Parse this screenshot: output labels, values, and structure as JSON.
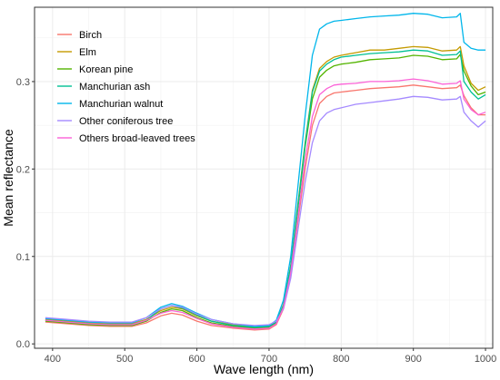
{
  "chart_data": {
    "type": "line",
    "title": "",
    "xlabel": "Wave length (nm)",
    "ylabel": "Mean reflectance",
    "xlim": [
      375,
      1010
    ],
    "ylim": [
      -0.005,
      0.385
    ],
    "x_ticks": [
      400,
      500,
      600,
      700,
      800,
      900,
      1000
    ],
    "x_tick_labels": [
      "400",
      "500",
      "600",
      "700",
      "800",
      "900",
      "1000"
    ],
    "y_ticks": [
      0.0,
      0.1,
      0.2,
      0.3
    ],
    "y_tick_labels": [
      "0.0",
      "0.1",
      "0.2",
      "0.3"
    ],
    "grid": true,
    "legend_position": "top-left",
    "x": [
      390,
      420,
      450,
      480,
      510,
      530,
      550,
      565,
      580,
      600,
      620,
      650,
      680,
      700,
      710,
      720,
      730,
      740,
      750,
      760,
      770,
      780,
      790,
      800,
      820,
      840,
      860,
      880,
      900,
      920,
      940,
      960,
      965,
      970,
      980,
      990,
      1000
    ],
    "series": [
      {
        "name": "Birch",
        "color": "#F8766D",
        "values": [
          0.025,
          0.023,
          0.021,
          0.02,
          0.02,
          0.024,
          0.032,
          0.035,
          0.033,
          0.026,
          0.021,
          0.018,
          0.016,
          0.017,
          0.022,
          0.04,
          0.08,
          0.14,
          0.2,
          0.25,
          0.275,
          0.283,
          0.287,
          0.288,
          0.29,
          0.292,
          0.293,
          0.294,
          0.296,
          0.294,
          0.292,
          0.293,
          0.296,
          0.284,
          0.27,
          0.262,
          0.262
        ]
      },
      {
        "name": "Elm",
        "color": "#C49A00",
        "values": [
          0.028,
          0.026,
          0.024,
          0.023,
          0.023,
          0.028,
          0.038,
          0.042,
          0.04,
          0.032,
          0.026,
          0.022,
          0.019,
          0.02,
          0.025,
          0.045,
          0.09,
          0.16,
          0.23,
          0.29,
          0.315,
          0.323,
          0.328,
          0.33,
          0.333,
          0.336,
          0.336,
          0.338,
          0.34,
          0.339,
          0.335,
          0.336,
          0.34,
          0.318,
          0.298,
          0.29,
          0.294
        ]
      },
      {
        "name": "Korean pine",
        "color": "#53B400",
        "values": [
          0.026,
          0.024,
          0.022,
          0.021,
          0.021,
          0.026,
          0.036,
          0.04,
          0.038,
          0.03,
          0.024,
          0.02,
          0.018,
          0.019,
          0.024,
          0.043,
          0.088,
          0.155,
          0.225,
          0.28,
          0.305,
          0.313,
          0.318,
          0.32,
          0.322,
          0.325,
          0.326,
          0.327,
          0.33,
          0.329,
          0.325,
          0.326,
          0.331,
          0.312,
          0.295,
          0.285,
          0.288
        ]
      },
      {
        "name": "Manchurian ash",
        "color": "#00C094",
        "values": [
          0.027,
          0.025,
          0.023,
          0.022,
          0.022,
          0.027,
          0.04,
          0.044,
          0.041,
          0.033,
          0.026,
          0.021,
          0.019,
          0.02,
          0.025,
          0.044,
          0.089,
          0.158,
          0.228,
          0.288,
          0.312,
          0.32,
          0.325,
          0.328,
          0.33,
          0.332,
          0.333,
          0.334,
          0.336,
          0.335,
          0.33,
          0.331,
          0.335,
          0.3,
          0.288,
          0.28,
          0.285
        ]
      },
      {
        "name": "Manchurian walnut",
        "color": "#00B6EB",
        "values": [
          0.029,
          0.027,
          0.025,
          0.024,
          0.024,
          0.03,
          0.042,
          0.046,
          0.043,
          0.035,
          0.028,
          0.023,
          0.02,
          0.021,
          0.027,
          0.05,
          0.1,
          0.18,
          0.26,
          0.33,
          0.36,
          0.366,
          0.369,
          0.37,
          0.372,
          0.374,
          0.375,
          0.376,
          0.378,
          0.377,
          0.373,
          0.374,
          0.378,
          0.345,
          0.338,
          0.336,
          0.336
        ]
      },
      {
        "name": "Other coniferous tree",
        "color": "#A58AFF",
        "values": [
          0.03,
          0.028,
          0.026,
          0.025,
          0.025,
          0.03,
          0.04,
          0.044,
          0.042,
          0.034,
          0.028,
          0.023,
          0.021,
          0.022,
          0.026,
          0.04,
          0.075,
          0.13,
          0.185,
          0.23,
          0.255,
          0.264,
          0.268,
          0.27,
          0.274,
          0.276,
          0.278,
          0.28,
          0.283,
          0.282,
          0.279,
          0.28,
          0.283,
          0.265,
          0.255,
          0.248,
          0.255
        ]
      },
      {
        "name": "Others broad-leaved trees",
        "color": "#FB61D7",
        "values": [
          0.027,
          0.025,
          0.023,
          0.022,
          0.022,
          0.027,
          0.035,
          0.038,
          0.036,
          0.029,
          0.023,
          0.019,
          0.017,
          0.018,
          0.023,
          0.042,
          0.082,
          0.145,
          0.21,
          0.26,
          0.285,
          0.292,
          0.296,
          0.297,
          0.298,
          0.3,
          0.3,
          0.301,
          0.303,
          0.301,
          0.297,
          0.298,
          0.301,
          0.28,
          0.268,
          0.262,
          0.265
        ]
      }
    ]
  }
}
